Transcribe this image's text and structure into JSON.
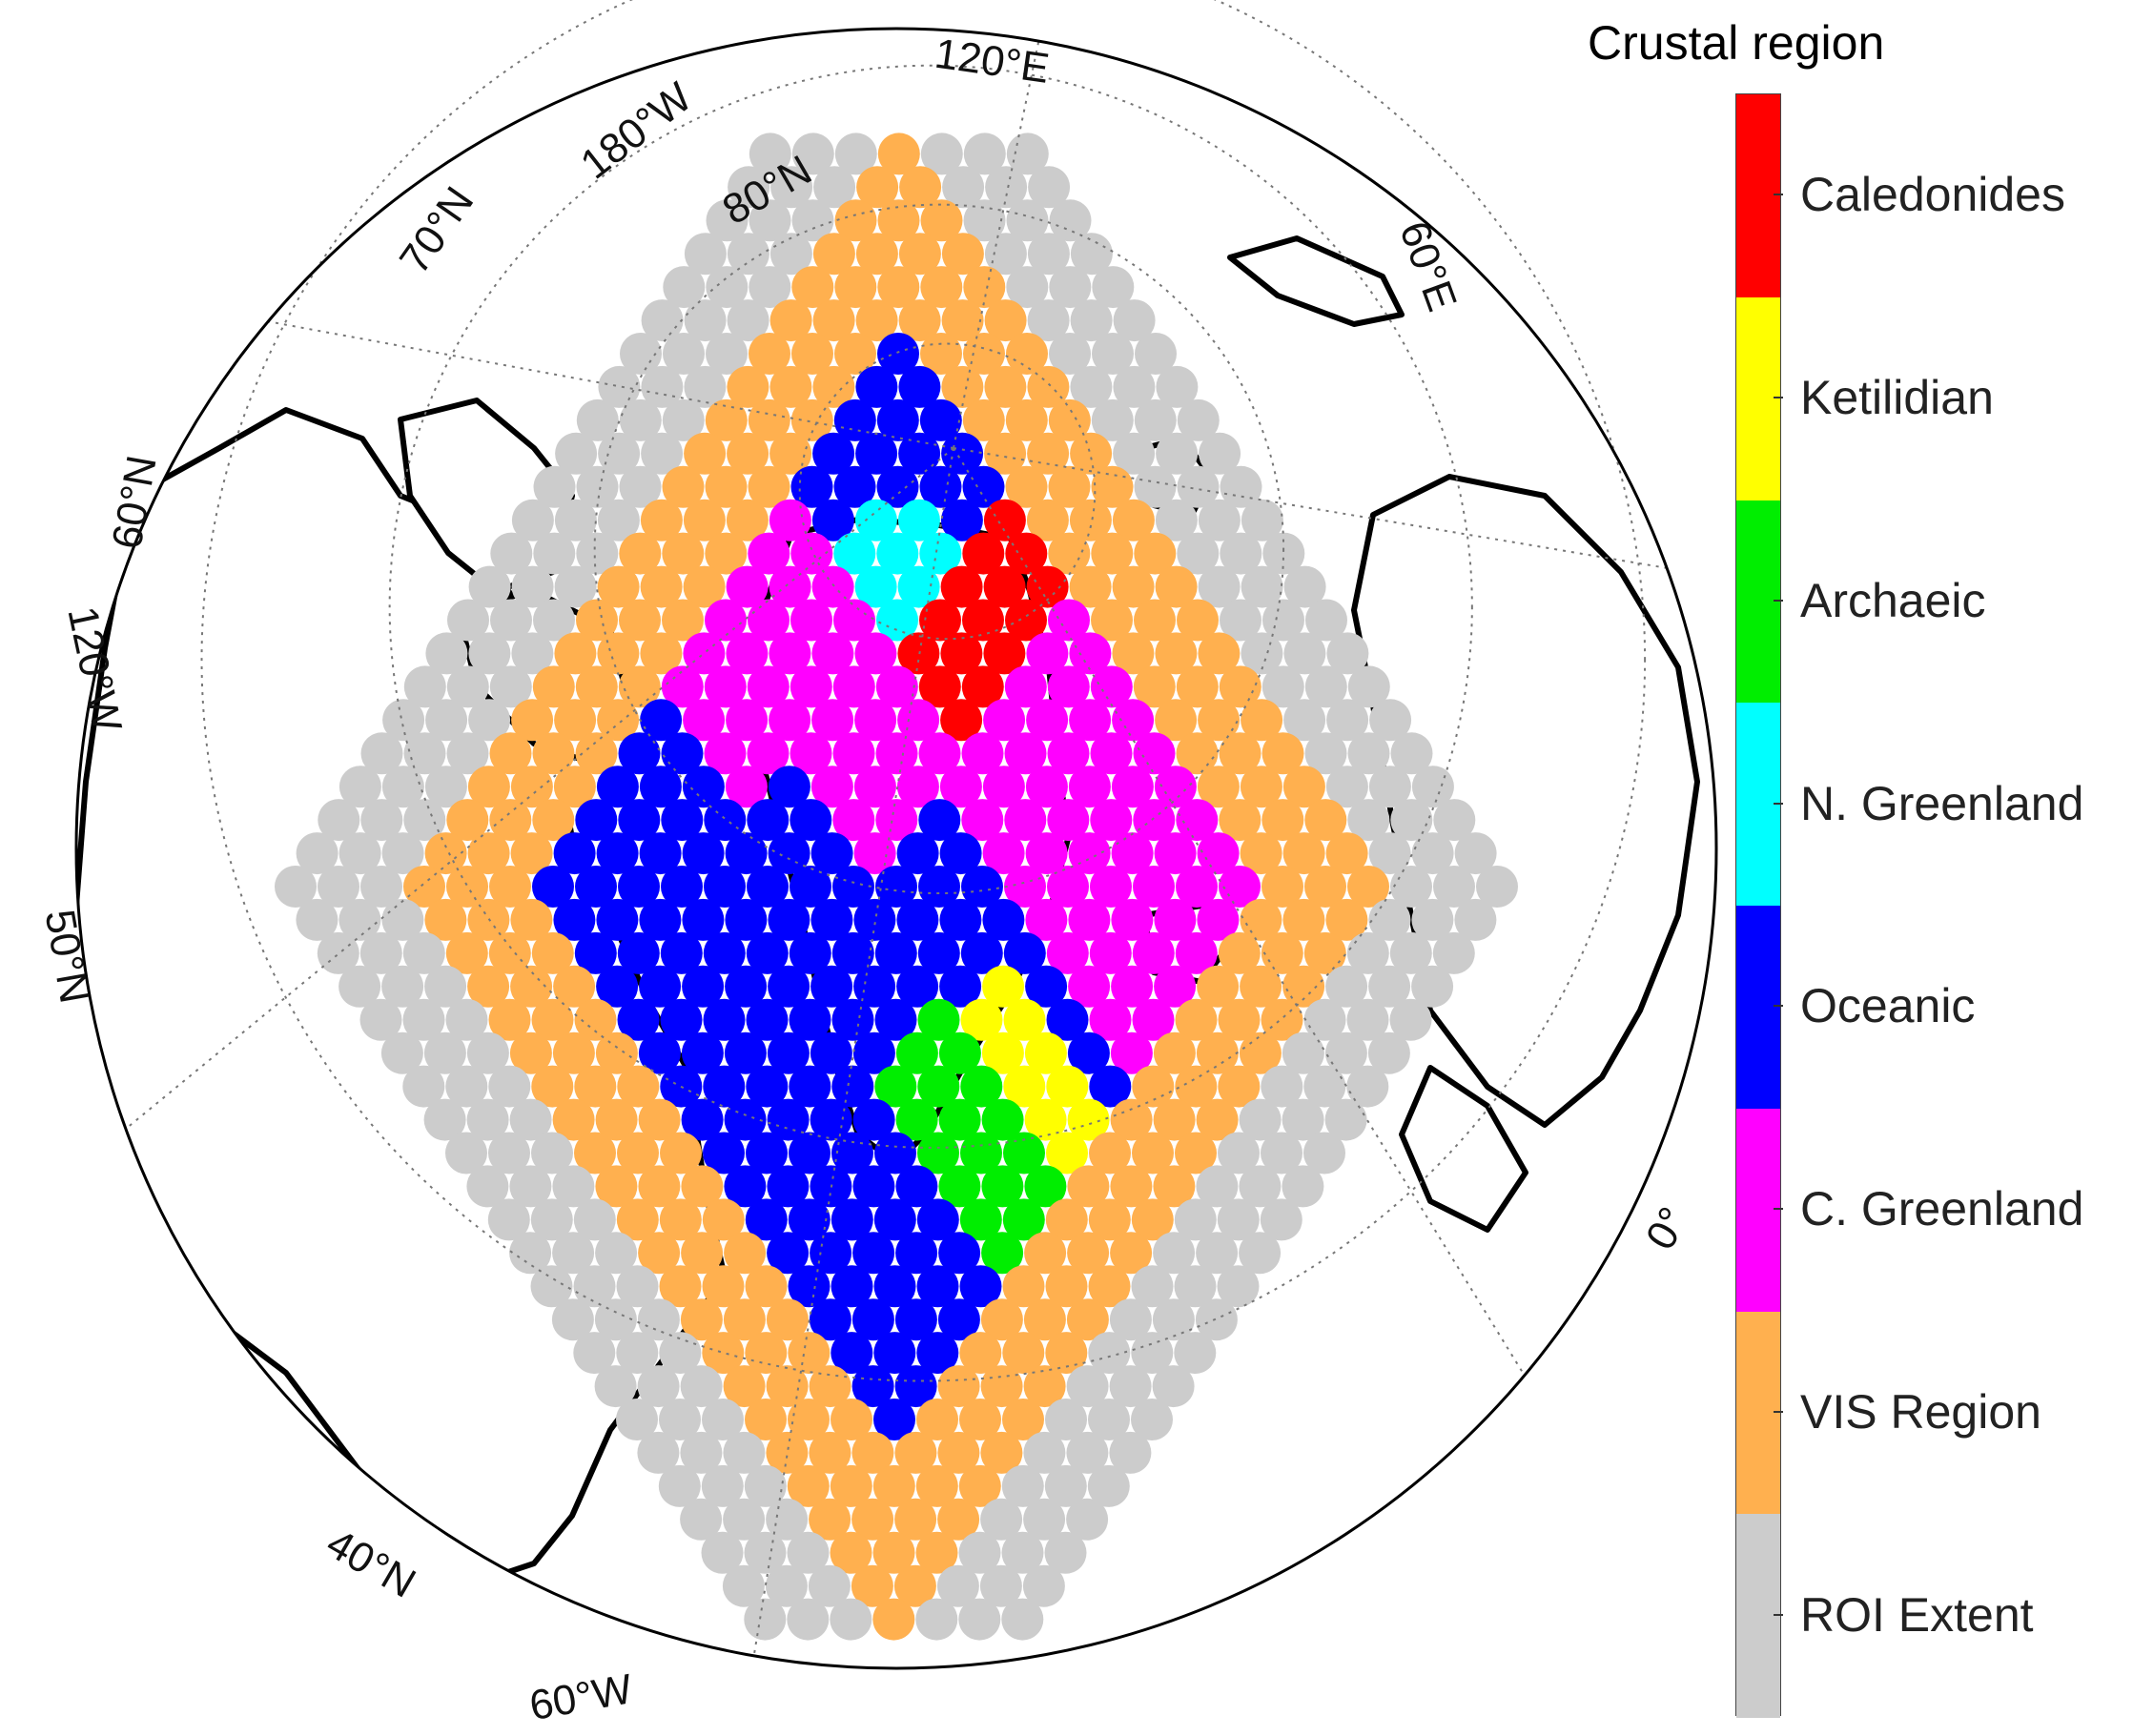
{
  "legend": {
    "title": "Crustal region",
    "entries": [
      {
        "label": "Caledonides",
        "color": "#ff0000"
      },
      {
        "label": "Ketilidian",
        "color": "#ffff00"
      },
      {
        "label": "Archaeic",
        "color": "#00ee00"
      },
      {
        "label": "N. Greenland",
        "color": "#00ffff"
      },
      {
        "label": "Oceanic",
        "color": "#0000ff"
      },
      {
        "label": "C. Greenland",
        "color": "#ff00ff"
      },
      {
        "label": "VIS Region",
        "color": "#ffb04f"
      },
      {
        "label": "ROI Extent",
        "color": "#cccccc"
      }
    ]
  },
  "map": {
    "graticule_labels": {
      "lon_120e": "120°E",
      "lon_180w": "180°W",
      "lat_80n": "80°N",
      "lat_70n": "70°N",
      "lon_60e": "60°E",
      "lat_60n": "60°N",
      "lon_120w": "120°W",
      "lat_50n": "50°N",
      "lon_0": "0°",
      "lat_40n": "40°N",
      "lon_60w": "60°W"
    }
  }
}
